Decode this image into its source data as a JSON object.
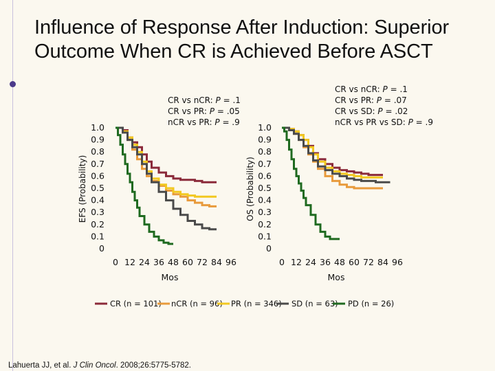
{
  "slide": {
    "title_line1": "Influence of Response After Induction: Superior",
    "title_line2": "Outcome When CR is Achieved Before ASCT",
    "citation_pre": "Lahuerta JJ, et al. ",
    "citation_journal": "J Clin Oncol",
    "citation_post": ". 2008;26:5775-5782."
  },
  "colors": {
    "background": "#fbf8ef",
    "CR": "#8b2a3a",
    "nCR": "#e89a3b",
    "PR": "#f2c820",
    "SD": "#4a4a4a",
    "PD": "#1f6a20"
  },
  "legend": {
    "items": [
      {
        "label": "CR (n = 101)",
        "key": "CR"
      },
      {
        "label": "nCR (n = 96)",
        "key": "nCR"
      },
      {
        "label": "PR (n = 346)",
        "key": "PR"
      },
      {
        "label": "SD (n = 63)",
        "key": "SD"
      },
      {
        "label": "PD (n = 26)",
        "key": "PD"
      }
    ]
  },
  "chart_data": [
    {
      "type": "line",
      "title": "",
      "xlabel": "Mos",
      "ylabel": "EFS (Probability)",
      "xlim": [
        0,
        96
      ],
      "ylim": [
        0,
        1.0
      ],
      "x_ticks": [
        "0",
        "12",
        "24",
        "36",
        "48",
        "60",
        "72",
        "84",
        "96"
      ],
      "y_ticks": [
        "0",
        "0.1",
        "0.2",
        "0.3",
        "0.4",
        "0.5",
        "0.6",
        "0.7",
        "0.8",
        "0.9",
        "1.0"
      ],
      "annotations": [
        {
          "pre": "CR vs nCR: ",
          "p": "P",
          "post": " = .1"
        },
        {
          "pre": "CR vs PR: ",
          "p": "P",
          "post": " = .05"
        },
        {
          "pre": "nCR vs PR: ",
          "p": "P",
          "post": " = .9"
        }
      ],
      "series": [
        {
          "name": "CR",
          "x": [
            0,
            6,
            10,
            14,
            18,
            22,
            26,
            30,
            36,
            42,
            48,
            54,
            60,
            66,
            72,
            78,
            84
          ],
          "y": [
            1.0,
            0.98,
            0.92,
            0.88,
            0.84,
            0.78,
            0.72,
            0.67,
            0.63,
            0.6,
            0.58,
            0.57,
            0.57,
            0.56,
            0.55,
            0.55,
            0.55
          ]
        },
        {
          "name": "nCR",
          "x": [
            0,
            6,
            10,
            14,
            18,
            22,
            26,
            30,
            36,
            42,
            48,
            54,
            60,
            66,
            72,
            78,
            84
          ],
          "y": [
            1.0,
            0.97,
            0.9,
            0.82,
            0.74,
            0.66,
            0.6,
            0.56,
            0.52,
            0.48,
            0.45,
            0.43,
            0.4,
            0.38,
            0.36,
            0.35,
            0.35
          ]
        },
        {
          "name": "PR",
          "x": [
            0,
            6,
            10,
            14,
            18,
            22,
            26,
            30,
            36,
            42,
            48,
            54,
            60,
            66,
            72,
            78,
            84
          ],
          "y": [
            1.0,
            0.97,
            0.92,
            0.86,
            0.8,
            0.72,
            0.64,
            0.58,
            0.53,
            0.5,
            0.47,
            0.45,
            0.44,
            0.43,
            0.43,
            0.43,
            0.43
          ]
        },
        {
          "name": "SD",
          "x": [
            0,
            6,
            10,
            14,
            18,
            22,
            26,
            30,
            36,
            42,
            48,
            54,
            60,
            66,
            72,
            78,
            84
          ],
          "y": [
            1.0,
            0.96,
            0.9,
            0.84,
            0.78,
            0.7,
            0.62,
            0.55,
            0.47,
            0.4,
            0.33,
            0.28,
            0.23,
            0.2,
            0.17,
            0.16,
            0.16
          ]
        },
        {
          "name": "PD",
          "x": [
            0,
            2,
            4,
            6,
            8,
            10,
            12,
            14,
            16,
            18,
            20,
            24,
            28,
            32,
            36,
            40,
            44,
            48
          ],
          "y": [
            1.0,
            0.94,
            0.86,
            0.78,
            0.7,
            0.62,
            0.55,
            0.47,
            0.4,
            0.34,
            0.27,
            0.2,
            0.14,
            0.1,
            0.07,
            0.05,
            0.04,
            0.04
          ]
        }
      ]
    },
    {
      "type": "line",
      "title": "",
      "xlabel": "Mos",
      "ylabel": "OS (Probability)",
      "xlim": [
        0,
        96
      ],
      "ylim": [
        0,
        1.0
      ],
      "x_ticks": [
        "0",
        "12",
        "24",
        "36",
        "48",
        "60",
        "72",
        "84",
        "96"
      ],
      "y_ticks": [
        "0",
        "0.1",
        "0.2",
        "0.3",
        "0.4",
        "0.5",
        "0.6",
        "0.7",
        "0.8",
        "0.9",
        "1.0"
      ],
      "annotations": [
        {
          "pre": "CR vs nCR: ",
          "p": "P",
          "post": " = .1"
        },
        {
          "pre": "CR vs PR: ",
          "p": "P",
          "post": " = .07"
        },
        {
          "pre": "CR vs SD: ",
          "p": "P",
          "post": " = .02"
        },
        {
          "pre": "nCR vs PR vs SD: ",
          "p": "P",
          "post": " = .9"
        }
      ],
      "series": [
        {
          "name": "CR",
          "x": [
            0,
            6,
            10,
            14,
            18,
            22,
            26,
            30,
            36,
            42,
            48,
            54,
            60,
            66,
            72,
            78,
            84
          ],
          "y": [
            1.0,
            0.99,
            0.97,
            0.94,
            0.9,
            0.85,
            0.79,
            0.74,
            0.7,
            0.67,
            0.65,
            0.64,
            0.63,
            0.62,
            0.61,
            0.61,
            0.61
          ]
        },
        {
          "name": "nCR",
          "x": [
            0,
            6,
            10,
            14,
            18,
            22,
            26,
            30,
            36,
            42,
            48,
            54,
            60,
            66,
            72,
            78,
            84
          ],
          "y": [
            1.0,
            0.98,
            0.95,
            0.9,
            0.84,
            0.78,
            0.72,
            0.66,
            0.6,
            0.56,
            0.53,
            0.51,
            0.5,
            0.5,
            0.5,
            0.5,
            0.5
          ]
        },
        {
          "name": "PR",
          "x": [
            0,
            6,
            10,
            14,
            18,
            22,
            26,
            30,
            36,
            42,
            48,
            54,
            60,
            66,
            72,
            78,
            84
          ],
          "y": [
            1.0,
            0.99,
            0.97,
            0.94,
            0.9,
            0.84,
            0.78,
            0.72,
            0.67,
            0.64,
            0.62,
            0.61,
            0.6,
            0.59,
            0.59,
            0.59,
            0.59
          ]
        },
        {
          "name": "SD",
          "x": [
            0,
            6,
            10,
            14,
            18,
            22,
            26,
            30,
            36,
            42,
            48,
            54,
            60,
            66,
            72,
            78,
            84,
            90
          ],
          "y": [
            1.0,
            0.98,
            0.95,
            0.9,
            0.85,
            0.79,
            0.73,
            0.68,
            0.65,
            0.62,
            0.6,
            0.58,
            0.57,
            0.56,
            0.56,
            0.55,
            0.55,
            0.55
          ]
        },
        {
          "name": "PD",
          "x": [
            0,
            2,
            4,
            6,
            8,
            10,
            12,
            14,
            16,
            18,
            20,
            24,
            28,
            32,
            36,
            40,
            48
          ],
          "y": [
            1.0,
            0.97,
            0.9,
            0.82,
            0.74,
            0.66,
            0.6,
            0.54,
            0.48,
            0.42,
            0.36,
            0.28,
            0.2,
            0.14,
            0.1,
            0.08,
            0.08
          ]
        }
      ]
    }
  ]
}
